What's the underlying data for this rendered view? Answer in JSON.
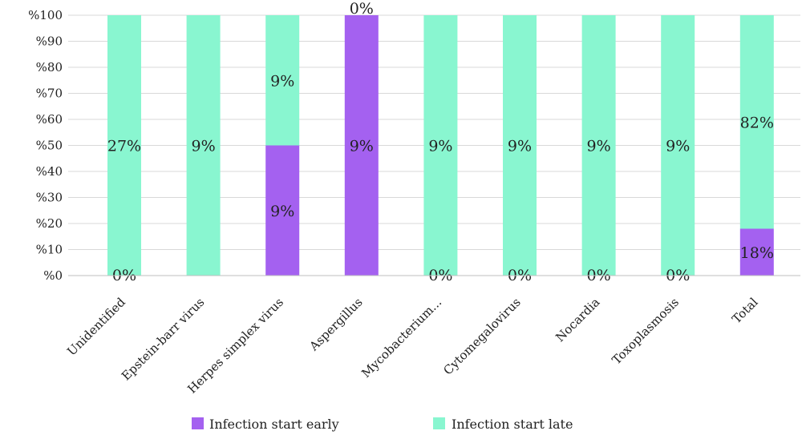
{
  "chart_data": {
    "type": "bar",
    "stacked": true,
    "normalized": true,
    "categories": [
      "Unidentified",
      "Epstein-barr virus",
      "Herpes simplex virus",
      "Aspergillus",
      "Mycobacterium...",
      "Cytomegalovirus",
      "Nocardia",
      "Toxoplasmosis",
      "Total"
    ],
    "series": [
      {
        "name": "Infection start early",
        "color": "#a461f0",
        "share": [
          0,
          0,
          50,
          100,
          0,
          0,
          0,
          0,
          18
        ],
        "labels": [
          "0%",
          "",
          "9%",
          "9%",
          "0%",
          "0%",
          "0%",
          "0%",
          "18%"
        ]
      },
      {
        "name": "Infection start late",
        "color": "#89f6d0",
        "share": [
          100,
          100,
          50,
          0,
          100,
          100,
          100,
          100,
          82
        ],
        "labels": [
          "27%",
          "9%",
          "9%",
          "0%",
          "9%",
          "9%",
          "9%",
          "9%",
          "82%"
        ]
      }
    ],
    "yticks": [
      "%0",
      "%10",
      "%20",
      "%30",
      "%40",
      "%50",
      "%60",
      "%70",
      "%80",
      "%90",
      "%100"
    ],
    "ylim": [
      0,
      100
    ],
    "grid": true,
    "legend": "bottom"
  }
}
